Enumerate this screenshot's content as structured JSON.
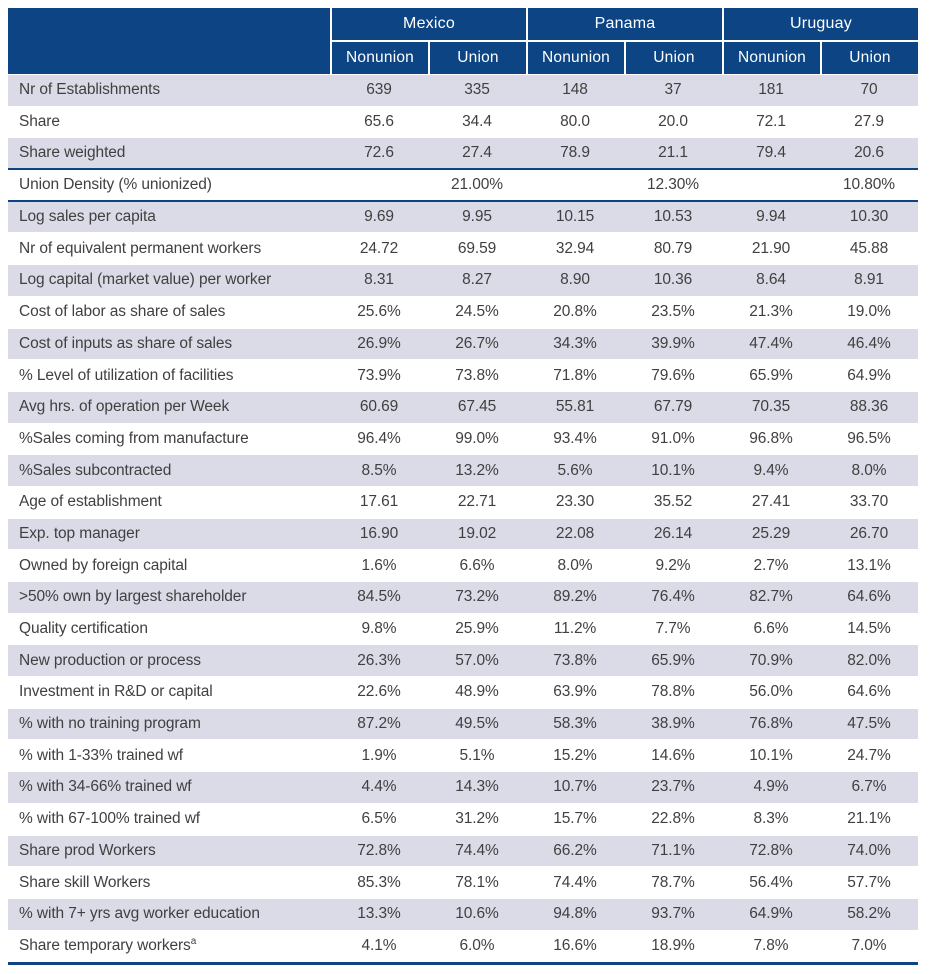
{
  "table": {
    "countries": [
      "Mexico",
      "Panama",
      "Uruguay"
    ],
    "subheaders": [
      "Nonunion",
      "Union"
    ],
    "colors": {
      "header_navy": "#0D4584",
      "stripe_lavender": "#DBDAE7",
      "body_text": "#404040"
    },
    "rows": [
      {
        "label": "Nr of Establishments",
        "values": [
          "639",
          "335",
          "148",
          "37",
          "181",
          "70"
        ]
      },
      {
        "label": "Share",
        "values": [
          "65.6",
          "34.4",
          "80.0",
          "20.0",
          "72.1",
          "27.9"
        ]
      },
      {
        "label": "Share weighted",
        "values": [
          "72.6",
          "27.4",
          "78.9",
          "21.1",
          "79.4",
          "20.6"
        ],
        "section_end": true
      },
      {
        "label": "Union Density (% unionized)",
        "values": [
          "",
          "21.00%",
          "",
          "12.30%",
          "",
          "10.80%"
        ],
        "section_end": true
      },
      {
        "label": "Log sales per capita",
        "values": [
          "9.69",
          "9.95",
          "10.15",
          "10.53",
          "9.94",
          "10.30"
        ]
      },
      {
        "label": "Nr of equivalent permanent workers",
        "values": [
          "24.72",
          "69.59",
          "32.94",
          "80.79",
          "21.90",
          "45.88"
        ]
      },
      {
        "label": "Log capital (market value) per worker",
        "values": [
          "8.31",
          "8.27",
          "8.90",
          "10.36",
          "8.64",
          "8.91"
        ]
      },
      {
        "label": "Cost of labor as share of sales",
        "values": [
          "25.6%",
          "24.5%",
          "20.8%",
          "23.5%",
          "21.3%",
          "19.0%"
        ]
      },
      {
        "label": "Cost of inputs as share of sales",
        "values": [
          "26.9%",
          "26.7%",
          "34.3%",
          "39.9%",
          "47.4%",
          "46.4%"
        ]
      },
      {
        "label": "% Level of utilization of facilities",
        "values": [
          "73.9%",
          "73.8%",
          "71.8%",
          "79.6%",
          "65.9%",
          "64.9%"
        ]
      },
      {
        "label": "Avg hrs. of operation per Week",
        "values": [
          "60.69",
          "67.45",
          "55.81",
          "67.79",
          "70.35",
          "88.36"
        ]
      },
      {
        "label": "%Sales coming from manufacture",
        "values": [
          "96.4%",
          "99.0%",
          "93.4%",
          "91.0%",
          "96.8%",
          "96.5%"
        ]
      },
      {
        "label": "%Sales subcontracted",
        "values": [
          "8.5%",
          "13.2%",
          "5.6%",
          "10.1%",
          "9.4%",
          "8.0%"
        ]
      },
      {
        "label": "Age of establishment",
        "values": [
          "17.61",
          "22.71",
          "23.30",
          "35.52",
          "27.41",
          "33.70"
        ]
      },
      {
        "label": "Exp. top manager",
        "values": [
          "16.90",
          "19.02",
          "22.08",
          "26.14",
          "25.29",
          "26.70"
        ]
      },
      {
        "label": "Owned by foreign capital",
        "values": [
          "1.6%",
          "6.6%",
          "8.0%",
          "9.2%",
          "2.7%",
          "13.1%"
        ]
      },
      {
        "label": ">50% own by largest shareholder",
        "values": [
          "84.5%",
          "73.2%",
          "89.2%",
          "76.4%",
          "82.7%",
          "64.6%"
        ]
      },
      {
        "label": "Quality certification",
        "values": [
          "9.8%",
          "25.9%",
          "11.2%",
          "7.7%",
          "6.6%",
          "14.5%"
        ]
      },
      {
        "label": "New production or process",
        "values": [
          "26.3%",
          "57.0%",
          "73.8%",
          "65.9%",
          "70.9%",
          "82.0%"
        ]
      },
      {
        "label": "Investment in R&D or capital",
        "values": [
          "22.6%",
          "48.9%",
          "63.9%",
          "78.8%",
          "56.0%",
          "64.6%"
        ]
      },
      {
        "label": "% with no training program",
        "values": [
          "87.2%",
          "49.5%",
          "58.3%",
          "38.9%",
          "76.8%",
          "47.5%"
        ]
      },
      {
        "label": "% with 1-33% trained wf",
        "values": [
          "1.9%",
          "5.1%",
          "15.2%",
          "14.6%",
          "10.1%",
          "24.7%"
        ]
      },
      {
        "label": "% with 34-66% trained wf",
        "values": [
          "4.4%",
          "14.3%",
          "10.7%",
          "23.7%",
          "4.9%",
          "6.7%"
        ]
      },
      {
        "label": "% with 67-100% trained wf",
        "values": [
          "6.5%",
          "31.2%",
          "15.7%",
          "22.8%",
          "8.3%",
          "21.1%"
        ]
      },
      {
        "label": "Share prod Workers",
        "values": [
          "72.8%",
          "74.4%",
          "66.2%",
          "71.1%",
          "72.8%",
          "74.0%"
        ]
      },
      {
        "label": "Share skill Workers",
        "values": [
          "85.3%",
          "78.1%",
          "74.4%",
          "78.7%",
          "56.4%",
          "57.7%"
        ]
      },
      {
        "label": "% with 7+ yrs avg worker education",
        "values": [
          "13.3%",
          "10.6%",
          "94.8%",
          "93.7%",
          "64.9%",
          "58.2%"
        ]
      },
      {
        "label": "Share temporary workers",
        "label_sup": "a",
        "values": [
          "4.1%",
          "6.0%",
          "16.6%",
          "18.9%",
          "7.8%",
          "7.0%"
        ]
      }
    ]
  }
}
